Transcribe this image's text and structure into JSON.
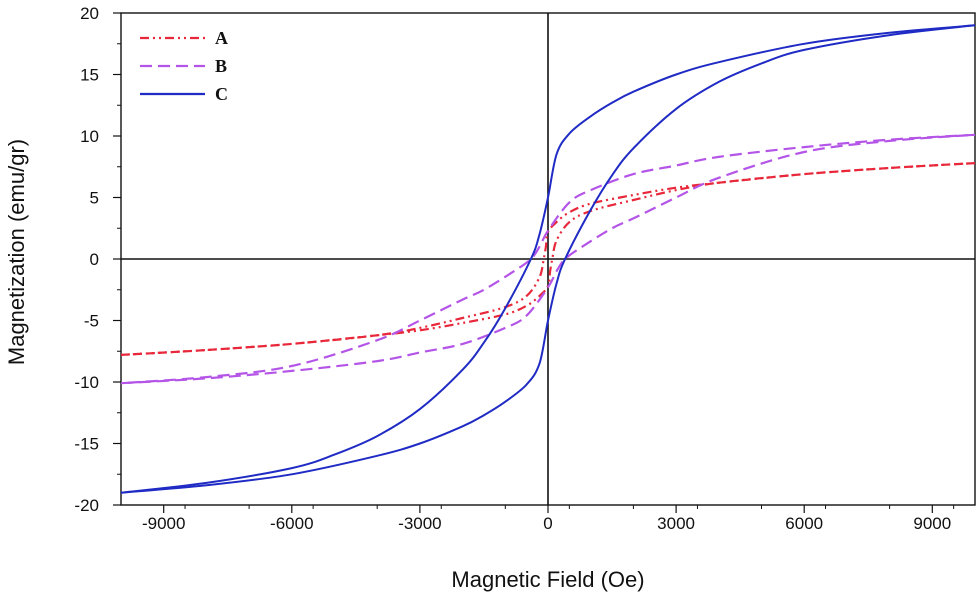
{
  "chart_data": {
    "type": "line",
    "title": "",
    "xlabel": "Magnetic Field (Oe)",
    "ylabel": "Magnetization (emu/gr)",
    "xlim": [
      -10000,
      10000
    ],
    "ylim": [
      -20,
      20
    ],
    "xticks": [
      -9000,
      -6000,
      -3000,
      0,
      3000,
      6000,
      9000
    ],
    "yticks": [
      20,
      15,
      10,
      5,
      0,
      -5,
      -10,
      -15,
      -20
    ],
    "grid": false,
    "zero_lines": true,
    "legend_position": "top-left",
    "series": [
      {
        "name": "A",
        "color": "#e8283a",
        "style": "dash-dot-dot",
        "descending": [
          [
            10000,
            7.8
          ],
          [
            8000,
            7.4
          ],
          [
            6000,
            6.9
          ],
          [
            4000,
            6.2
          ],
          [
            3000,
            5.8
          ],
          [
            2000,
            5.2
          ],
          [
            1000,
            4.5
          ],
          [
            500,
            3.8
          ],
          [
            200,
            3.0
          ],
          [
            0,
            2.2
          ],
          [
            -50,
            1.0
          ],
          [
            -100,
            0.0
          ],
          [
            -200,
            -1.5
          ],
          [
            -500,
            -3.0
          ],
          [
            -1000,
            -3.9
          ],
          [
            -2000,
            -4.8
          ],
          [
            -3000,
            -5.6
          ],
          [
            -4000,
            -6.2
          ],
          [
            -6000,
            -6.9
          ],
          [
            -8000,
            -7.4
          ],
          [
            -10000,
            -7.8
          ]
        ],
        "ascending": [
          [
            -10000,
            -7.8
          ],
          [
            -8000,
            -7.4
          ],
          [
            -6000,
            -6.9
          ],
          [
            -4000,
            -6.2
          ],
          [
            -3000,
            -5.8
          ],
          [
            -2000,
            -5.2
          ],
          [
            -1000,
            -4.5
          ],
          [
            -500,
            -3.8
          ],
          [
            -200,
            -3.0
          ],
          [
            0,
            -2.2
          ],
          [
            50,
            -1.0
          ],
          [
            100,
            0.0
          ],
          [
            200,
            1.5
          ],
          [
            500,
            3.0
          ],
          [
            1000,
            3.9
          ],
          [
            2000,
            4.8
          ],
          [
            3000,
            5.6
          ],
          [
            4000,
            6.2
          ],
          [
            6000,
            6.9
          ],
          [
            8000,
            7.4
          ],
          [
            10000,
            7.8
          ]
        ]
      },
      {
        "name": "B",
        "color": "#b455e8",
        "style": "dashed",
        "descending": [
          [
            10000,
            10.1
          ],
          [
            8000,
            9.7
          ],
          [
            6000,
            9.1
          ],
          [
            4000,
            8.3
          ],
          [
            3000,
            7.6
          ],
          [
            2000,
            6.9
          ],
          [
            1000,
            5.6
          ],
          [
            500,
            4.6
          ],
          [
            0,
            2.3
          ],
          [
            -200,
            1.0
          ],
          [
            -400,
            0.0
          ],
          [
            -800,
            -1.0
          ],
          [
            -1500,
            -2.5
          ],
          [
            -2000,
            -3.3
          ],
          [
            -3000,
            -5.0
          ],
          [
            -4000,
            -6.6
          ],
          [
            -6000,
            -8.7
          ],
          [
            -8000,
            -9.6
          ],
          [
            -10000,
            -10.1
          ]
        ],
        "ascending": [
          [
            -10000,
            -10.1
          ],
          [
            -8000,
            -9.7
          ],
          [
            -6000,
            -9.1
          ],
          [
            -4000,
            -8.3
          ],
          [
            -3000,
            -7.6
          ],
          [
            -2000,
            -6.9
          ],
          [
            -1000,
            -5.6
          ],
          [
            -500,
            -4.6
          ],
          [
            0,
            -2.3
          ],
          [
            200,
            -1.0
          ],
          [
            400,
            0.0
          ],
          [
            800,
            1.0
          ],
          [
            1500,
            2.5
          ],
          [
            2000,
            3.3
          ],
          [
            3000,
            5.0
          ],
          [
            4000,
            6.6
          ],
          [
            6000,
            8.7
          ],
          [
            8000,
            9.6
          ],
          [
            10000,
            10.1
          ]
        ]
      },
      {
        "name": "C",
        "color": "#1f2bc4",
        "style": "solid",
        "descending": [
          [
            10000,
            19.0
          ],
          [
            8000,
            18.4
          ],
          [
            6000,
            17.5
          ],
          [
            4000,
            16.0
          ],
          [
            3000,
            15.0
          ],
          [
            2000,
            13.6
          ],
          [
            1500,
            12.7
          ],
          [
            1000,
            11.6
          ],
          [
            500,
            10.2
          ],
          [
            200,
            8.5
          ],
          [
            0,
            5.0
          ],
          [
            -200,
            2.0
          ],
          [
            -400,
            0.0
          ],
          [
            -1000,
            -4.0
          ],
          [
            -1500,
            -6.8
          ],
          [
            -2000,
            -9.0
          ],
          [
            -3000,
            -12.2
          ],
          [
            -4000,
            -14.4
          ],
          [
            -5000,
            -15.9
          ],
          [
            -6000,
            -17.0
          ],
          [
            -8000,
            -18.2
          ],
          [
            -10000,
            -19.0
          ]
        ],
        "ascending": [
          [
            -10000,
            -19.0
          ],
          [
            -8000,
            -18.4
          ],
          [
            -6000,
            -17.5
          ],
          [
            -4000,
            -16.0
          ],
          [
            -3000,
            -15.0
          ],
          [
            -2000,
            -13.6
          ],
          [
            -1500,
            -12.7
          ],
          [
            -1000,
            -11.6
          ],
          [
            -500,
            -10.2
          ],
          [
            -200,
            -8.5
          ],
          [
            0,
            -5.0
          ],
          [
            200,
            -2.0
          ],
          [
            400,
            0.0
          ],
          [
            1000,
            4.0
          ],
          [
            1500,
            6.8
          ],
          [
            2000,
            9.0
          ],
          [
            3000,
            12.2
          ],
          [
            4000,
            14.4
          ],
          [
            5000,
            15.9
          ],
          [
            6000,
            17.0
          ],
          [
            8000,
            18.2
          ],
          [
            10000,
            19.0
          ]
        ]
      }
    ]
  }
}
